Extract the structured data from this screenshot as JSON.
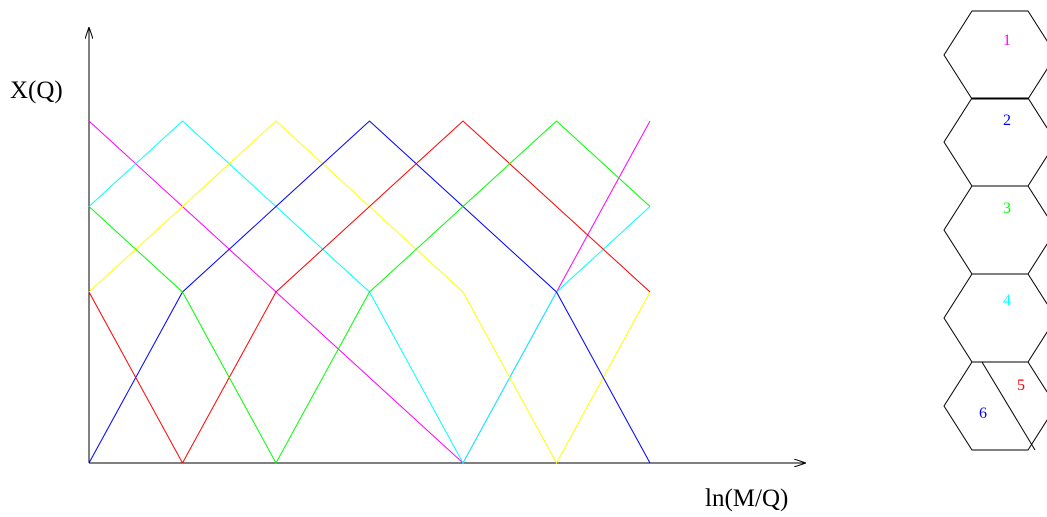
{
  "axes": {
    "ylabel": "X(Q)",
    "xlabel": "ln(M/Q)"
  },
  "chart_data": {
    "type": "line",
    "title": "",
    "xlabel": "ln(M/Q)",
    "ylabel": "X(Q)",
    "xlim": [
      0,
      6
    ],
    "ylim": [
      0,
      1
    ],
    "x": [
      0,
      1,
      2,
      3,
      4,
      5,
      6
    ],
    "series": [
      {
        "color": "#ff00ff",
        "values": [
          1.0,
          0.75,
          0.5,
          0.25,
          0.0,
          0.5,
          1.0
        ]
      },
      {
        "color": "#00ffff",
        "values": [
          0.75,
          1.0,
          0.75,
          0.5,
          0.0,
          0.5,
          0.75
        ]
      },
      {
        "color": "#ffff00",
        "values": [
          0.5,
          0.75,
          1.0,
          0.75,
          0.5,
          0.0,
          0.5
        ]
      },
      {
        "color": "#0000ff",
        "values": [
          0.0,
          0.5,
          0.75,
          1.0,
          0.75,
          0.5,
          0.0
        ]
      },
      {
        "color": "#ff0000",
        "values": [
          0.5,
          0.0,
          0.5,
          0.75,
          1.0,
          0.75,
          0.5
        ]
      },
      {
        "color": "#00ff00",
        "values": [
          0.75,
          0.5,
          0.0,
          0.5,
          0.75,
          1.0,
          0.75
        ]
      }
    ]
  },
  "hexagons": [
    {
      "label": "1",
      "color": "#ff00ff"
    },
    {
      "label": "2",
      "color": "#0000ff"
    },
    {
      "label": "3",
      "color": "#00ff00"
    },
    {
      "label": "4",
      "color": "#00ffff"
    },
    {
      "label": "5",
      "color": "#ff0000"
    },
    {
      "label": "6",
      "color": "#0000ff"
    }
  ]
}
